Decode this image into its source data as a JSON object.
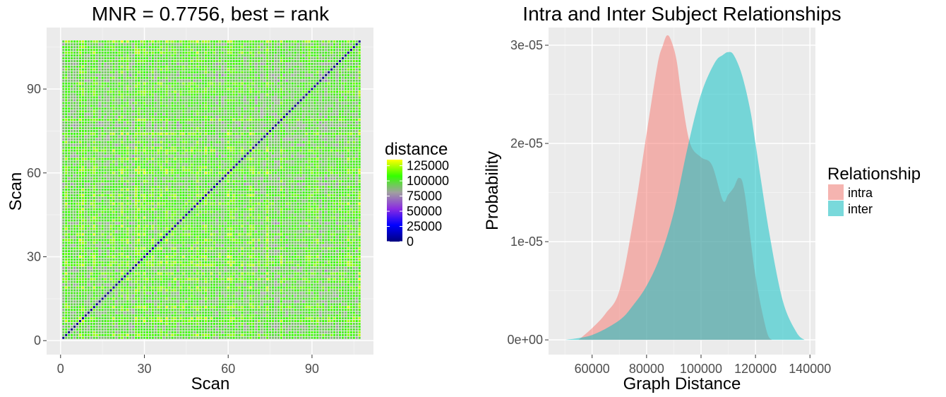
{
  "chart_data": [
    {
      "type": "heatmap",
      "title": "MNR = 0.7756, best = rank",
      "xlabel": "Scan",
      "ylabel": "Scan",
      "n_scans": 107,
      "xlim": [
        -5,
        112
      ],
      "ylim": [
        -5,
        112
      ],
      "x_ticks": [
        0,
        30,
        60,
        90
      ],
      "y_ticks": [
        0,
        30,
        60,
        90
      ],
      "grid": true,
      "legend": {
        "title": "distance",
        "placement": "right",
        "ticks": [
          0,
          25000,
          50000,
          75000,
          100000,
          125000
        ],
        "tick_labels": [
          "0",
          "25000",
          "50000",
          "75000",
          "100000",
          "125000"
        ],
        "max": 135000,
        "colors": [
          "#000080",
          "#0000ff",
          "#8a2be2",
          "#a0a0a0",
          "#33ff00",
          "#ffff00"
        ]
      },
      "diagonal_value": 0,
      "off_diagonal_range": [
        70000,
        135000
      ]
    },
    {
      "type": "area",
      "title": "Intra and Inter Subject Relationships",
      "xlabel": "Graph Distance",
      "ylabel": "Probability",
      "xlim": [
        44000,
        142000
      ],
      "ylim": [
        -1.5e-06,
        3.18e-05
      ],
      "x_ticks": [
        60000,
        80000,
        100000,
        120000,
        140000
      ],
      "x_tick_labels": [
        "60000",
        "80000",
        "100000",
        "120000",
        "140000"
      ],
      "y_ticks": [
        0,
        1e-05,
        2e-05,
        3e-05
      ],
      "y_tick_labels": [
        "0e+00",
        "1e-05",
        "2e-05",
        "3e-05"
      ],
      "grid": true,
      "legend": {
        "title": "Relationship",
        "placement": "right"
      },
      "series": [
        {
          "name": "intra",
          "color": "#f8766d",
          "x": [
            55000,
            60000,
            65000,
            70000,
            75000,
            80000,
            84000,
            86000,
            87500,
            89000,
            91000,
            93000,
            96000,
            100000,
            104000,
            108000,
            110000,
            112000,
            114000,
            116000,
            120000,
            124000,
            126000
          ],
          "y": [
            0,
            1.2e-06,
            2.7e-06,
            5e-06,
            1.2e-05,
            2.1e-05,
            2.8e-05,
            3e-05,
            3.1e-05,
            3.05e-05,
            2.85e-05,
            2.45e-05,
            2e-05,
            1.86e-05,
            1.78e-05,
            1.42e-05,
            1.48e-05,
            1.55e-05,
            1.65e-05,
            1.5e-05,
            6.5e-06,
            1e-06,
            0
          ]
        },
        {
          "name": "inter",
          "color": "#00bfc4",
          "x": [
            50000,
            60000,
            70000,
            75000,
            80000,
            85000,
            90000,
            95000,
            100000,
            105000,
            108000,
            110000,
            112000,
            115000,
            118000,
            120000,
            125000,
            130000,
            135000,
            138000
          ],
          "y": [
            0,
            5e-07,
            2e-06,
            3.5e-06,
            5.5e-06,
            8.5e-06,
            1.3e-05,
            1.95e-05,
            2.5e-05,
            2.82e-05,
            2.9e-05,
            2.93e-05,
            2.9e-05,
            2.7e-05,
            2.35e-05,
            2e-05,
            1.1e-05,
            4e-06,
            8e-07,
            0
          ]
        }
      ]
    }
  ]
}
